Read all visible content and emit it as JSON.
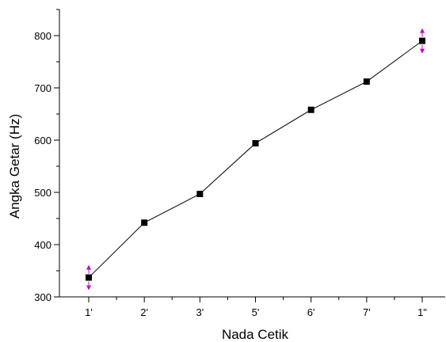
{
  "chart_data": {
    "type": "line",
    "xlabel": "Nada Cetik",
    "ylabel": "Angka Getar (Hz)",
    "categories": [
      "1'",
      "2'",
      "3'",
      "5'",
      "6'",
      "7'",
      "1\""
    ],
    "series": [
      {
        "values": [
          337,
          442,
          497,
          594,
          658,
          712,
          790
        ],
        "marker": "square",
        "color": "#000000"
      }
    ],
    "error_markers": {
      "categories": [
        "1'",
        "1\""
      ],
      "color": "#cc00cc"
    },
    "ylim": [
      300,
      850
    ],
    "yticks": [
      300,
      400,
      500,
      600,
      700,
      800
    ],
    "grid": false
  }
}
